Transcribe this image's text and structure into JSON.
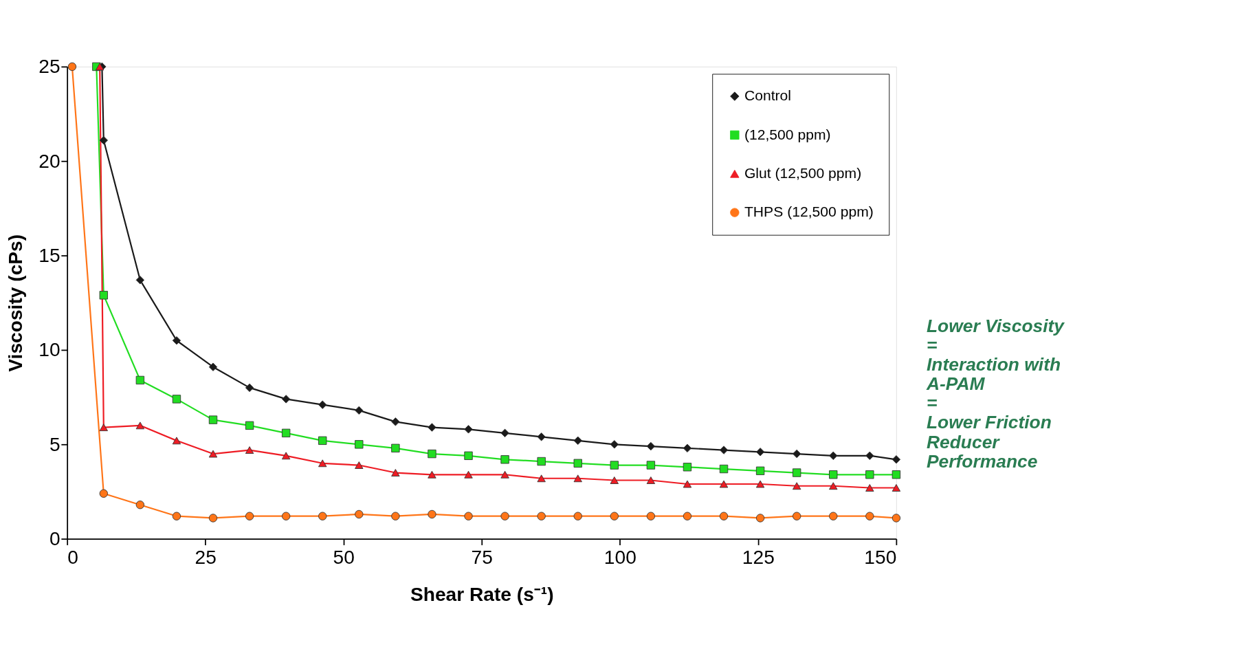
{
  "chart_data": {
    "type": "line",
    "xlabel": "Shear Rate (s⁻¹)",
    "ylabel": "Viscosity (cPs)",
    "xlim": [
      0,
      150
    ],
    "ylim": [
      0,
      25
    ],
    "xticks": [
      0,
      25,
      50,
      75,
      100,
      125,
      150
    ],
    "yticks": [
      0,
      5,
      10,
      15,
      20,
      25
    ],
    "grid": false,
    "legend": "top right",
    "line_style": "solid",
    "annotations": [
      "Lower Viscosity\n=\nInteraction with\nA-PAM\n=\nLower Friction\nReducer\nPerformance"
    ],
    "series": [
      {
        "name": "Control",
        "color": "#1a1a1a",
        "marker": "diamond",
        "x": [
          6.3,
          6.6,
          13.2,
          19.8,
          26.4,
          33,
          39.6,
          46.2,
          52.8,
          59.4,
          66,
          72.6,
          79.2,
          85.8,
          92.4,
          99,
          105.6,
          112.2,
          118.8,
          125.4,
          132,
          138.6,
          145.2,
          150
        ],
        "values": [
          25,
          21.1,
          13.7,
          10.5,
          9.1,
          8.0,
          7.4,
          7.1,
          6.8,
          6.2,
          5.9,
          5.8,
          5.6,
          5.4,
          5.2,
          5.0,
          4.9,
          4.8,
          4.7,
          4.6,
          4.5,
          4.4,
          4.4,
          4.2
        ]
      },
      {
        "name": "(12,500 ppm)",
        "color": "#22dd22",
        "marker": "square",
        "x": [
          5.3,
          6.6,
          13.2,
          19.8,
          26.4,
          33,
          39.6,
          46.2,
          52.8,
          59.4,
          66,
          72.6,
          79.2,
          85.8,
          92.4,
          99,
          105.6,
          112.2,
          118.8,
          125.4,
          132,
          138.6,
          145.2,
          150
        ],
        "values": [
          25,
          12.9,
          8.4,
          7.4,
          6.3,
          6.0,
          5.6,
          5.2,
          5.0,
          4.8,
          4.5,
          4.4,
          4.2,
          4.1,
          4.0,
          3.9,
          3.9,
          3.8,
          3.7,
          3.6,
          3.5,
          3.4,
          3.4,
          3.4
        ]
      },
      {
        "name": "Glut (12,500 ppm)",
        "color": "#ee1c24",
        "marker": "triangle",
        "x": [
          5.9,
          6.6,
          13.2,
          19.8,
          26.4,
          33,
          39.6,
          46.2,
          52.8,
          59.4,
          66,
          72.6,
          79.2,
          85.8,
          92.4,
          99,
          105.6,
          112.2,
          118.8,
          125.4,
          132,
          138.6,
          145.2,
          150
        ],
        "values": [
          25,
          5.9,
          6.0,
          5.2,
          4.5,
          4.7,
          4.4,
          4.0,
          3.9,
          3.5,
          3.4,
          3.4,
          3.4,
          3.2,
          3.2,
          3.1,
          3.1,
          2.9,
          2.9,
          2.9,
          2.8,
          2.8,
          2.7,
          2.7
        ]
      },
      {
        "name": "THPS (12,500 ppm)",
        "color": "#ff7518",
        "marker": "circle",
        "x": [
          0.9,
          6.6,
          13.2,
          19.8,
          26.4,
          33,
          39.6,
          46.2,
          52.8,
          59.4,
          66,
          72.6,
          79.2,
          85.8,
          92.4,
          99,
          105.6,
          112.2,
          118.8,
          125.4,
          132,
          138.6,
          145.2,
          150
        ],
        "values": [
          25,
          2.4,
          1.8,
          1.2,
          1.1,
          1.2,
          1.2,
          1.2,
          1.3,
          1.2,
          1.3,
          1.2,
          1.2,
          1.2,
          1.2,
          1.2,
          1.2,
          1.2,
          1.2,
          1.1,
          1.2,
          1.2,
          1.2,
          1.1
        ]
      }
    ]
  }
}
